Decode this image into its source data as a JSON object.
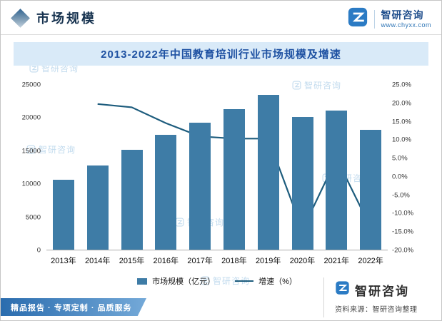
{
  "header": {
    "section_title": "市场规模",
    "brand_name": "智研咨询",
    "brand_url": "www.chyxx.com"
  },
  "chart_title": "2013-2022年中国教育培训行业市场规模及增速",
  "chart_data": {
    "type": "bar+line",
    "title": "2013-2022年中国教育培训行业市场规模及增速",
    "categories": [
      "2013年",
      "2014年",
      "2015年",
      "2016年",
      "2017年",
      "2018年",
      "2019年",
      "2020年",
      "2021年",
      "2022年"
    ],
    "series": [
      {
        "name": "市场规模（亿元）",
        "type": "bar",
        "color": "#3e7ca6",
        "axis": "left",
        "values": [
          10600,
          12700,
          15100,
          17300,
          19200,
          21200,
          23400,
          20000,
          21000,
          18100
        ]
      },
      {
        "name": "增速（%）",
        "type": "line",
        "color": "#1d5c7d",
        "axis": "right",
        "values": [
          null,
          19.8,
          18.9,
          14.6,
          11.0,
          10.4,
          10.4,
          -14.5,
          5.0,
          -13.8
        ]
      }
    ],
    "left_axis": {
      "min": 0,
      "max": 25000,
      "step": 5000,
      "labels_top_to_bottom": [
        "25000",
        "20000",
        "15000",
        "10000",
        "5000",
        "0"
      ]
    },
    "right_axis": {
      "min": -20,
      "max": 25,
      "step": 5,
      "labels_top_to_bottom": [
        "25.0%",
        "20.0%",
        "15.0%",
        "10.0%",
        "5.0%",
        "0.0%",
        "-5.0%",
        "-10.0%",
        "-15.0%",
        "-20.0%"
      ]
    },
    "legend_position": "bottom",
    "grid": false
  },
  "footer": {
    "ribbon": "精品报告 · 专项定制 · 品质服务",
    "brand_name": "智研咨询",
    "source": "资料来源：智研咨询整理"
  },
  "watermark_text": "智研咨询",
  "colors": {
    "bar": "#3e7ca6",
    "line": "#1d5c7d",
    "title_bg": "#d9eaf8",
    "title_text": "#1e51a2",
    "brand_blue": "#1f4e8c",
    "watermark": "#c2dbee"
  }
}
